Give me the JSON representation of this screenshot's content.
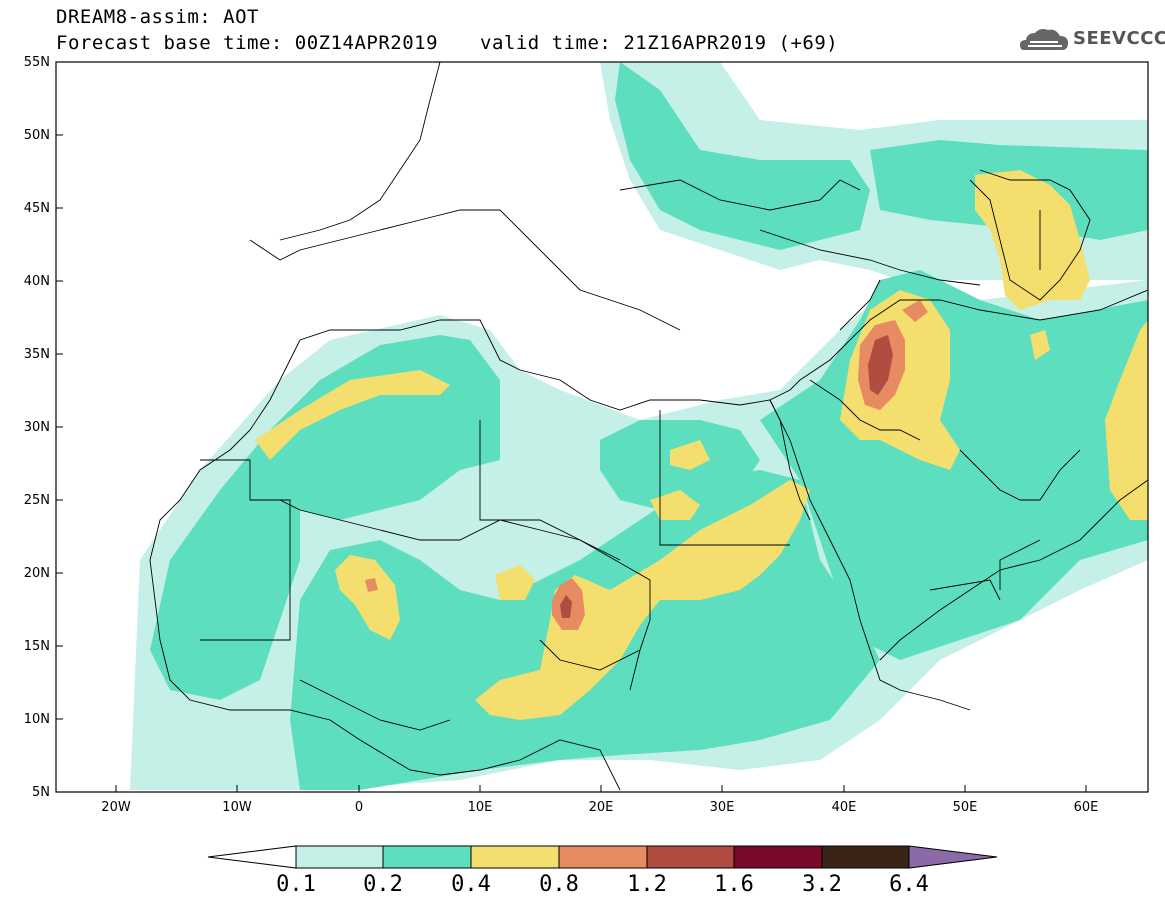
{
  "title": {
    "line1": "DREAM8-assim: AOT",
    "line2_left": "Forecast base time: 00Z14APR2019",
    "line2_right": "valid time: 21Z16APR2019 (+69)"
  },
  "logo": {
    "text": "SEEVCCC",
    "icon": "cloud-icon"
  },
  "map": {
    "lat_labels": [
      "55N",
      "50N",
      "45N",
      "40N",
      "35N",
      "30N",
      "25N",
      "20N",
      "15N",
      "10N",
      "5N"
    ],
    "lon_labels": [
      "20W",
      "10W",
      "0",
      "10E",
      "20E",
      "30E",
      "40E",
      "50E",
      "60E"
    ],
    "extent": {
      "lon_min": -25,
      "lon_max": 65,
      "lat_min": 5,
      "lat_max": 55
    }
  },
  "colorbar": {
    "labels": [
      "0.1",
      "0.2",
      "0.4",
      "0.8",
      "1.2",
      "1.6",
      "3.2",
      "6.4"
    ],
    "colors": [
      "#ffffff",
      "#c4f0e7",
      "#5ddfbf",
      "#f4df6e",
      "#e68b62",
      "#b04d40",
      "#7a0a29",
      "#3a2418",
      "#8a6aa7"
    ]
  }
}
